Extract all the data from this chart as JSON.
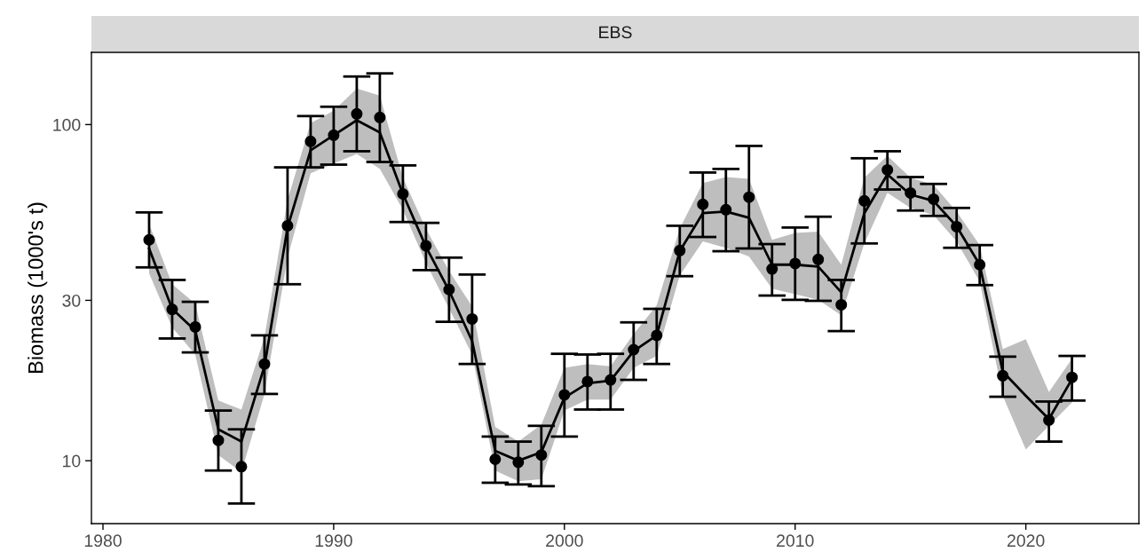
{
  "chart_data": {
    "type": "line",
    "title": "EBS",
    "ylabel": "Biomass (1000's t)",
    "log": "y",
    "grid": false,
    "xlim": [
      1979.5,
      2024.9
    ],
    "xticks": [
      1980,
      1990,
      2000,
      2010,
      2020
    ],
    "ylim": [
      6.5,
      164
    ],
    "yticks": [
      10,
      30,
      100
    ],
    "series": [
      {
        "color": "#000000",
        "marker": "none",
        "x": [
          1982,
          1983,
          1984,
          1985,
          1986,
          1987,
          1988,
          1989,
          1990,
          1991,
          1992,
          1993,
          1994,
          1995,
          1996,
          1997,
          1998,
          1999,
          2000,
          2001,
          2002,
          2003,
          2004,
          2005,
          2006,
          2007,
          2008,
          2009,
          2010,
          2011,
          2012,
          2013,
          2014,
          2015,
          2016,
          2017,
          2018,
          2019,
          2020,
          2021,
          2022
        ],
        "values": [
          42.8,
          28.3,
          24.4,
          12.4,
          11.4,
          19.1,
          49.4,
          83.8,
          93.0,
          103,
          94.7,
          62.2,
          43.3,
          32.1,
          22.7,
          10.7,
          10.0,
          10.6,
          15.4,
          17.0,
          17.3,
          21.2,
          23.6,
          42.0,
          54.5,
          55.1,
          52.8,
          38.3,
          38.3,
          37.8,
          31.7,
          54.5,
          71.1,
          61.9,
          59.3,
          49.8,
          38.3,
          18.4,
          15.6,
          13.3,
          17.5
        ],
        "lower": [
          36.1,
          24.9,
          20.7,
          10.4,
          9.25,
          15.8,
          40.2,
          71.6,
          76.6,
          81.8,
          73.8,
          55.8,
          38.7,
          28.4,
          20.7,
          9.35,
          8.69,
          8.81,
          14.1,
          15.2,
          15.2,
          18.9,
          20.5,
          35.6,
          44.9,
          43.0,
          40.5,
          32.5,
          31.3,
          30.1,
          27.1,
          44.3,
          62.7,
          56.5,
          53.8,
          44.9,
          34.1,
          15.6,
          10.8,
          12.7,
          14.9
        ],
        "upper": [
          50.6,
          33.5,
          29.3,
          15.1,
          14.2,
          23.3,
          59.7,
          101,
          110,
          128,
          122,
          69.5,
          48.9,
          36.7,
          28.8,
          12.6,
          11.4,
          12.8,
          18.9,
          19.4,
          19.1,
          23.8,
          29.0,
          49.1,
          67.0,
          69.8,
          69.0,
          45.4,
          47.6,
          48.0,
          38.3,
          69.5,
          80.8,
          69.5,
          66.2,
          55.1,
          43.8,
          21.5,
          23.0,
          16.0,
          20.1
        ]
      },
      {
        "type": "scatter",
        "color": "#000000",
        "marker": "circle",
        "x": [
          1982,
          1983,
          1984,
          1985,
          1986,
          1987,
          1988,
          1989,
          1990,
          1991,
          1992,
          1993,
          1994,
          1995,
          1996,
          1997,
          1998,
          1999,
          2000,
          2001,
          2002,
          2003,
          2004,
          2005,
          2006,
          2007,
          2008,
          2009,
          2010,
          2011,
          2012,
          2013,
          2014,
          2015,
          2016,
          2017,
          2018,
          2019,
          2021,
          2022
        ],
        "values": [
          45.4,
          28.2,
          25.0,
          11.5,
          9.6,
          19.4,
          50.0,
          89.1,
          93.0,
          107.6,
          105,
          62.2,
          43.6,
          32.3,
          26.4,
          10.1,
          9.9,
          10.4,
          15.7,
          17.2,
          17.4,
          21.4,
          23.6,
          42.2,
          57.9,
          55.8,
          60.8,
          37.2,
          38.6,
          39.7,
          29.1,
          59.3,
          73.3,
          62.6,
          60.0,
          49.7,
          38.3,
          17.9,
          13.2,
          17.7
        ],
        "errors": [
          [
            37.6,
            54.8
          ],
          [
            23.1,
            34.5
          ],
          [
            21.0,
            29.7
          ],
          [
            9.35,
            14.1
          ],
          [
            7.46,
            12.4
          ],
          [
            15.8,
            23.6
          ],
          [
            33.5,
            74.6
          ],
          [
            74.6,
            106
          ],
          [
            76.0,
            113
          ],
          [
            83.3,
            139
          ],
          [
            77.4,
            142
          ],
          [
            51.3,
            75.6
          ],
          [
            36.9,
            51.0
          ],
          [
            25.9,
            40.2
          ],
          [
            19.4,
            35.8
          ],
          [
            8.6,
            11.8
          ],
          [
            8.5,
            11.4
          ],
          [
            8.4,
            12.7
          ],
          [
            11.8,
            20.8
          ],
          [
            14.2,
            20.7
          ],
          [
            14.2,
            20.8
          ],
          [
            17.4,
            25.8
          ],
          [
            19.4,
            28.3
          ],
          [
            35.4,
            50.0
          ],
          [
            46.3,
            72.0
          ],
          [
            42.0,
            73.8
          ],
          [
            42.8,
            86.4
          ],
          [
            31.0,
            44.1
          ],
          [
            30.1,
            49.4
          ],
          [
            29.9,
            53.2
          ],
          [
            24.3,
            34.5
          ],
          [
            44.3,
            79.4
          ],
          [
            64.1,
            83.3
          ],
          [
            55.5,
            69.8
          ],
          [
            53.5,
            66.6
          ],
          [
            43.0,
            56.5
          ],
          [
            33.3,
            43.8
          ],
          [
            15.5,
            20.4
          ],
          [
            11.4,
            15.0
          ],
          [
            15.1,
            20.5
          ]
        ]
      }
    ]
  }
}
